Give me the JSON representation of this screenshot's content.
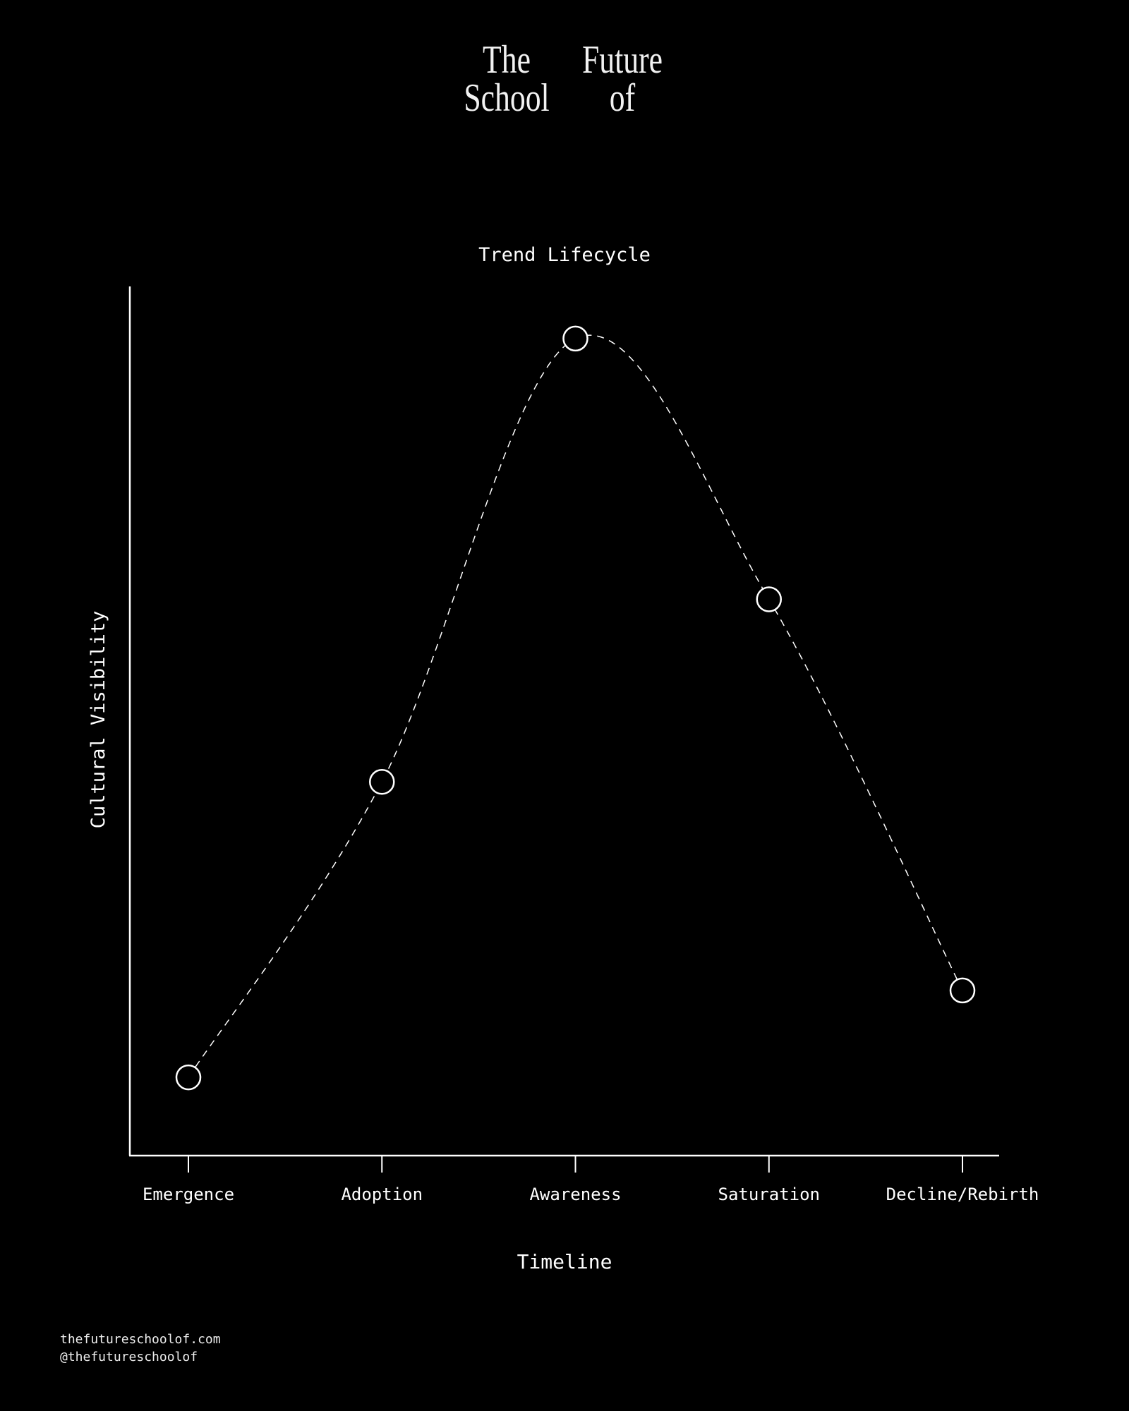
{
  "logo": {
    "left_column": [
      "The",
      "School"
    ],
    "right_column": [
      "Future",
      "of"
    ]
  },
  "chart_data": {
    "type": "line",
    "title": "Trend Lifecycle",
    "xlabel": "Timeline",
    "ylabel": "Cultural Visibility",
    "categories": [
      "Emergence",
      "Adoption",
      "Awareness",
      "Saturation",
      "Decline/Rebirth"
    ],
    "values": [
      9,
      43,
      94,
      64,
      19
    ],
    "ylim": [
      0,
      100
    ],
    "line_style": "dashed smooth curve",
    "markers": "hollow circles",
    "grid": false,
    "y_tick_labels": false,
    "colors": {
      "background": "#000000",
      "foreground": "#ffffff"
    }
  },
  "footer": {
    "website": "thefutureschoolof.com",
    "handle": "@thefutureschoolof"
  }
}
